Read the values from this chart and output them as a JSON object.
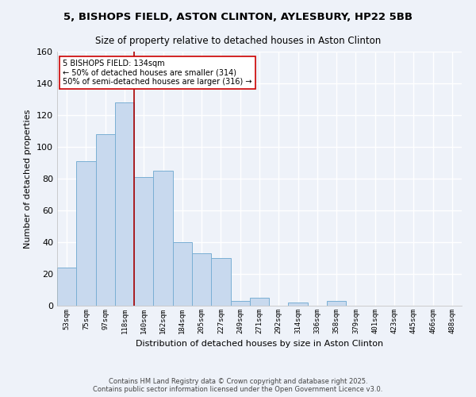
{
  "title": "5, BISHOPS FIELD, ASTON CLINTON, AYLESBURY, HP22 5BB",
  "subtitle": "Size of property relative to detached houses in Aston Clinton",
  "xlabel": "Distribution of detached houses by size in Aston Clinton",
  "ylabel": "Number of detached properties",
  "bar_color": "#c8d9ee",
  "bar_edge_color": "#7aafd4",
  "background_color": "#eef2f9",
  "grid_color": "#ffffff",
  "bin_labels": [
    "53sqm",
    "75sqm",
    "97sqm",
    "118sqm",
    "140sqm",
    "162sqm",
    "184sqm",
    "205sqm",
    "227sqm",
    "249sqm",
    "271sqm",
    "292sqm",
    "314sqm",
    "336sqm",
    "358sqm",
    "379sqm",
    "401sqm",
    "423sqm",
    "445sqm",
    "466sqm",
    "488sqm"
  ],
  "bar_heights": [
    24,
    91,
    108,
    128,
    81,
    85,
    40,
    33,
    30,
    3,
    5,
    0,
    2,
    0,
    3,
    0,
    0,
    0,
    0,
    0,
    0
  ],
  "ylim": [
    0,
    160
  ],
  "yticks": [
    0,
    20,
    40,
    60,
    80,
    100,
    120,
    140,
    160
  ],
  "vline_x": 4,
  "vline_color": "#aa0000",
  "annotation_title": "5 BISHOPS FIELD: 134sqm",
  "annotation_line1": "← 50% of detached houses are smaller (314)",
  "annotation_line2": "50% of semi-detached houses are larger (316) →",
  "annotation_box_edge": "#cc0000",
  "footer1": "Contains HM Land Registry data © Crown copyright and database right 2025.",
  "footer2": "Contains public sector information licensed under the Open Government Licence v3.0."
}
